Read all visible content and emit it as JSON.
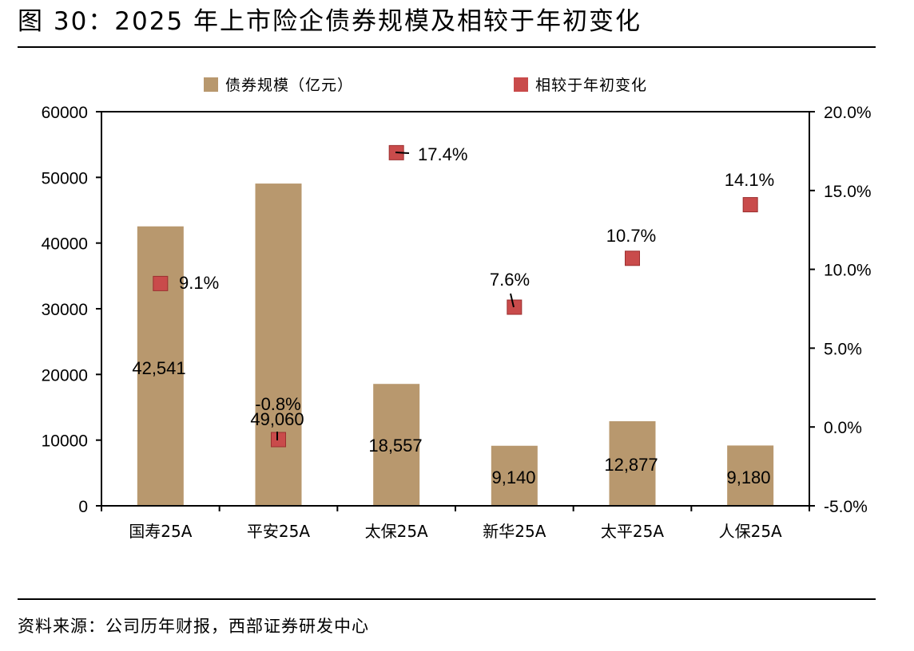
{
  "figure": {
    "title": "图 30：2025 年上市险企债券规模及相较于年初变化",
    "source": "资料来源：公司历年财报，西部证券研发中心"
  },
  "chart_data": {
    "type": "bar",
    "categories": [
      "国寿25A",
      "平安25A",
      "太保25A",
      "新华25A",
      "太平25A",
      "人保25A"
    ],
    "series": [
      {
        "name": "债券规模（亿元）",
        "type": "bar",
        "axis": "left",
        "color": "#B8986E",
        "values": [
          42541,
          49060,
          18557,
          9140,
          12877,
          9180
        ],
        "labels": [
          "42,541",
          "49,060",
          "18,557",
          "9,140",
          "12,877",
          "9,180"
        ]
      },
      {
        "name": "相较于年初变化",
        "type": "scatter",
        "axis": "right",
        "color": "#C94B4B",
        "values": [
          9.1,
          -0.8,
          17.4,
          7.6,
          10.7,
          14.1
        ],
        "labels": [
          "9.1%",
          "-0.8%",
          "17.4%",
          "7.6%",
          "10.7%",
          "14.1%"
        ]
      }
    ],
    "y_left": {
      "range": [
        0,
        60000
      ],
      "ticks": [
        0,
        10000,
        20000,
        30000,
        40000,
        50000,
        60000
      ],
      "tick_labels": [
        "0",
        "10000",
        "20000",
        "30000",
        "40000",
        "50000",
        "60000"
      ]
    },
    "y_right": {
      "range": [
        -5,
        20
      ],
      "ticks": [
        -5,
        0,
        5,
        10,
        15,
        20
      ],
      "tick_labels": [
        "-5.0%",
        "0.0%",
        "5.0%",
        "10.0%",
        "15.0%",
        "20.0%"
      ]
    },
    "grid": false,
    "legend": "top"
  }
}
